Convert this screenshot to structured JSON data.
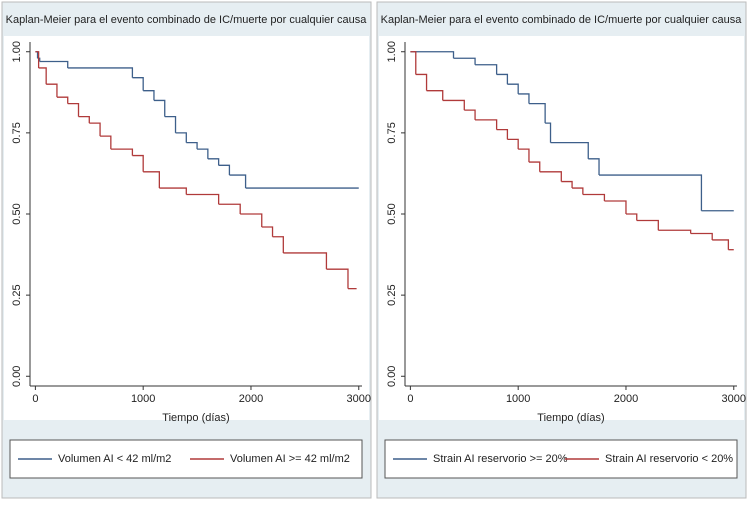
{
  "chart_data": [
    {
      "type": "step",
      "title": "Kaplan-Meier para el evento combinado de IC/muerte por cualquier causa",
      "xlabel": "Tiempo (días)",
      "xlim": [
        -50,
        3030
      ],
      "xticks": [
        0,
        1000,
        2000,
        3000
      ],
      "ylim": [
        -0.03,
        1.03
      ],
      "yticks": [
        {
          "value": 0,
          "label": "0.00"
        },
        {
          "value": 0.25,
          "label": "0.25"
        },
        {
          "value": 0.5,
          "label": "0.50"
        },
        {
          "value": 0.75,
          "label": "0.75"
        },
        {
          "value": 1,
          "label": "1.00"
        }
      ],
      "series": [
        {
          "name": "Volumen AI < 42 ml/m2",
          "color": "#3d5f8a",
          "x": [
            0,
            20,
            40,
            300,
            900,
            1000,
            1100,
            1200,
            1300,
            1400,
            1500,
            1600,
            1700,
            1800,
            1950,
            3000
          ],
          "values": [
            1.0,
            0.98,
            0.97,
            0.95,
            0.92,
            0.88,
            0.85,
            0.8,
            0.75,
            0.72,
            0.7,
            0.67,
            0.65,
            0.62,
            0.58,
            0.58
          ]
        },
        {
          "name": "Volumen AI >= 42 ml/m2",
          "color": "#b03a3a",
          "x": [
            0,
            30,
            100,
            200,
            300,
            400,
            500,
            600,
            700,
            900,
            1000,
            1150,
            1400,
            1700,
            1900,
            2100,
            2200,
            2300,
            2700,
            2900,
            2980
          ],
          "values": [
            1.0,
            0.95,
            0.9,
            0.86,
            0.84,
            0.8,
            0.78,
            0.74,
            0.7,
            0.68,
            0.63,
            0.58,
            0.56,
            0.53,
            0.5,
            0.46,
            0.43,
            0.38,
            0.33,
            0.27,
            0.27
          ]
        }
      ]
    },
    {
      "type": "step",
      "title": "Kaplan-Meier para el evento combinado de IC/muerte por cualquier causa",
      "xlabel": "Tiempo (días)",
      "xlim": [
        -50,
        3030
      ],
      "xticks": [
        0,
        1000,
        2000,
        3000
      ],
      "ylim": [
        -0.03,
        1.03
      ],
      "yticks": [
        {
          "value": 0,
          "label": "0.00"
        },
        {
          "value": 0.25,
          "label": "0.25"
        },
        {
          "value": 0.5,
          "label": "0.50"
        },
        {
          "value": 0.75,
          "label": "0.75"
        },
        {
          "value": 1,
          "label": "1.00"
        }
      ],
      "series": [
        {
          "name": "Strain AI reservorio >= 20%",
          "color": "#3d5f8a",
          "x": [
            0,
            400,
            600,
            800,
            900,
            1000,
            1100,
            1250,
            1300,
            1650,
            1750,
            2700,
            3000
          ],
          "values": [
            1.0,
            0.98,
            0.96,
            0.93,
            0.9,
            0.87,
            0.84,
            0.78,
            0.72,
            0.67,
            0.62,
            0.51,
            0.51
          ]
        },
        {
          "name": "Strain AI reservorio < 20%",
          "color": "#b03a3a",
          "x": [
            0,
            50,
            150,
            300,
            500,
            600,
            800,
            900,
            1000,
            1100,
            1200,
            1400,
            1500,
            1600,
            1800,
            2000,
            2100,
            2300,
            2600,
            2800,
            2950,
            3000
          ],
          "values": [
            1.0,
            0.93,
            0.88,
            0.85,
            0.82,
            0.79,
            0.76,
            0.73,
            0.7,
            0.66,
            0.63,
            0.6,
            0.58,
            0.56,
            0.54,
            0.5,
            0.48,
            0.45,
            0.44,
            0.42,
            0.39,
            0.39
          ]
        }
      ]
    }
  ]
}
